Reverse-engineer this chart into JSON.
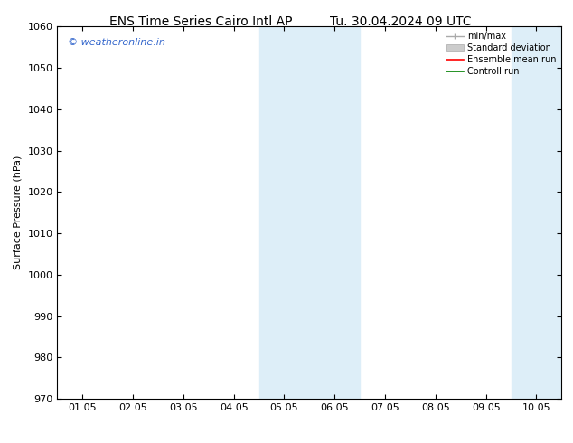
{
  "title_left": "ENS Time Series Cairo Intl AP",
  "title_right": "Tu. 30.04.2024 09 UTC",
  "ylabel": "Surface Pressure (hPa)",
  "ylim": [
    970,
    1060
  ],
  "yticks": [
    970,
    980,
    990,
    1000,
    1010,
    1020,
    1030,
    1040,
    1050,
    1060
  ],
  "xtick_labels": [
    "01.05",
    "02.05",
    "03.05",
    "04.05",
    "05.05",
    "06.05",
    "07.05",
    "08.05",
    "09.05",
    "10.05"
  ],
  "shaded_bands": [
    {
      "xstart": 3.5,
      "xend": 5.5
    },
    {
      "xstart": 8.5,
      "xend": 10.0
    }
  ],
  "shade_color": "#ddeef8",
  "watermark_text": "© weatheronline.in",
  "watermark_color": "#3366cc",
  "bg_color": "#ffffff",
  "title_fontsize": 10,
  "axis_label_fontsize": 8,
  "tick_fontsize": 8,
  "watermark_fontsize": 8,
  "spine_color": "#000000",
  "tick_color": "#000000"
}
